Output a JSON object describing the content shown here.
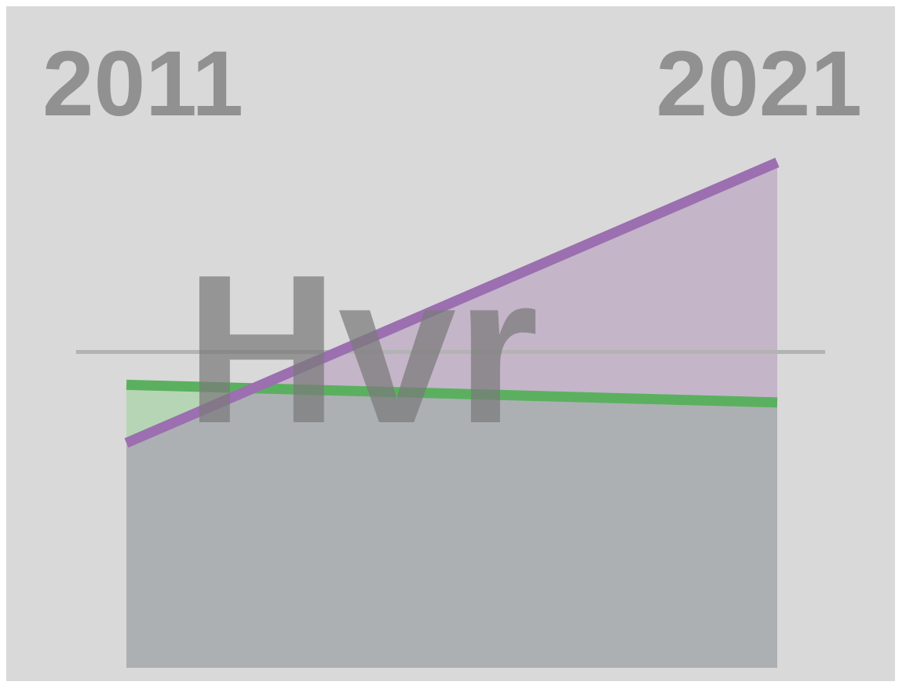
{
  "chart_data": {
    "type": "area",
    "title": "Hvr",
    "x": [
      2011,
      2021
    ],
    "x_labels": [
      "2011",
      "2021"
    ],
    "ylim": [
      0,
      100
    ],
    "reference_line": 62.5,
    "grid": false,
    "legend": "none",
    "series": [
      {
        "values": [
          56,
          52.5
        ],
        "color": "#5bb05f",
        "fill": "#b6d5b5"
      },
      {
        "values": [
          44.5,
          100
        ],
        "color": "#9b6fb0",
        "fill": "#c4b5c9"
      }
    ],
    "overlap_fill": "#acb0b3",
    "reference_color": "#b3b3b3",
    "background": "#d9d9d9",
    "title_color": "#7a7a7a"
  }
}
